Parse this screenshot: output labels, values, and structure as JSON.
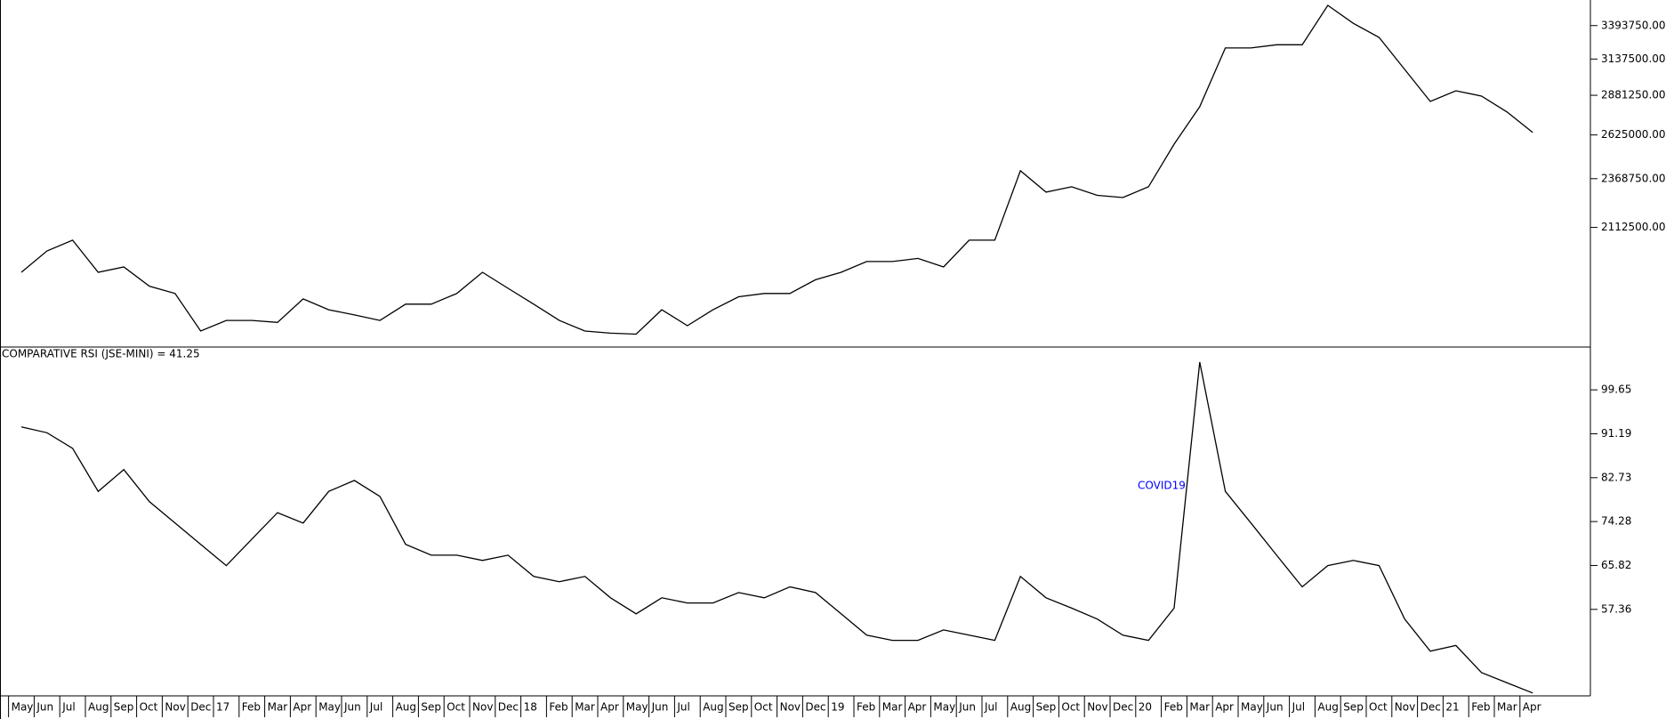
{
  "chart_data": [
    {
      "type": "line",
      "color": "#000000",
      "log_scale": true,
      "ylim": [
        1595000,
        3604000
      ],
      "yticks": [
        {
          "value": 2112500,
          "label": "2112500.00"
        },
        {
          "value": 2368750,
          "label": "2368750.00"
        },
        {
          "value": 2625000,
          "label": "2625000.00"
        },
        {
          "value": 2881250,
          "label": "2881250.00"
        },
        {
          "value": 3137500,
          "label": "3137500.00"
        },
        {
          "value": 3393750,
          "label": "3393750.00"
        }
      ],
      "values": [
        1901000,
        1999000,
        2050000,
        1901000,
        1925000,
        1840000,
        1809000,
        1656000,
        1698000,
        1698000,
        1690000,
        1786000,
        1741000,
        1720000,
        1698000,
        1764000,
        1764000,
        1809000,
        1901000,
        1831000,
        1764000,
        1698000,
        1656000,
        1648000,
        1644000,
        1741000,
        1677000,
        1741000,
        1795000,
        1809000,
        1809000,
        1868000,
        1901000,
        1950000,
        1950000,
        1964000,
        1925000,
        2050000,
        2050000,
        2413000,
        2295000,
        2324000,
        2278000,
        2266000,
        2324000,
        2569000,
        2805000,
        3220000,
        3220000,
        3244000,
        3244000,
        3559000,
        3411000,
        3301000,
        3062000,
        2840000,
        2912000,
        2876000,
        2770000,
        2640000
      ]
    },
    {
      "type": "line",
      "color": "#000000",
      "title": "COMPARATIVE RSI (JSE-MINI) = 41.25",
      "annotation": {
        "text": "COVID19",
        "color": "#0000ff"
      },
      "ylim": [
        40.7,
        107.9
      ],
      "yticks": [
        57.36,
        65.82,
        74.28,
        82.73,
        91.19,
        99.65
      ],
      "categories": [
        "May",
        "Jun",
        "Jul",
        "Aug",
        "Sep",
        "Oct",
        "Nov",
        "Dec",
        "17",
        "Feb",
        "Mar",
        "Apr",
        "May",
        "Jun",
        "Jul",
        "Aug",
        "Sep",
        "Oct",
        "Nov",
        "Dec",
        "18",
        "Feb",
        "Mar",
        "Apr",
        "May",
        "Jun",
        "Jul",
        "Aug",
        "Sep",
        "Oct",
        "Nov",
        "Dec",
        "19",
        "Feb",
        "Mar",
        "Apr",
        "May",
        "Jun",
        "Jul",
        "Aug",
        "Sep",
        "Oct",
        "Nov",
        "Dec",
        "20",
        "Feb",
        "Mar",
        "Apr",
        "May",
        "Jun",
        "Jul",
        "Aug",
        "Sep",
        "Oct",
        "Nov",
        "Dec",
        "21",
        "Feb",
        "Mar",
        "Apr"
      ],
      "values": [
        92.5,
        91.4,
        88.4,
        80.1,
        84.3,
        78.1,
        74.0,
        69.9,
        65.8,
        70.9,
        76.0,
        74.0,
        80.1,
        82.2,
        79.1,
        69.9,
        67.8,
        67.8,
        66.8,
        67.8,
        63.7,
        62.7,
        63.7,
        59.6,
        56.5,
        59.6,
        58.6,
        58.6,
        60.6,
        59.6,
        61.7,
        60.6,
        56.5,
        52.4,
        51.4,
        51.4,
        53.4,
        52.4,
        51.4,
        63.7,
        59.6,
        57.6,
        55.5,
        52.4,
        51.4,
        57.6,
        105.0,
        80.1,
        74.0,
        67.8,
        61.7,
        65.8,
        66.8,
        65.8,
        55.5,
        49.3,
        50.4,
        45.2,
        43.2,
        41.25
      ]
    }
  ]
}
